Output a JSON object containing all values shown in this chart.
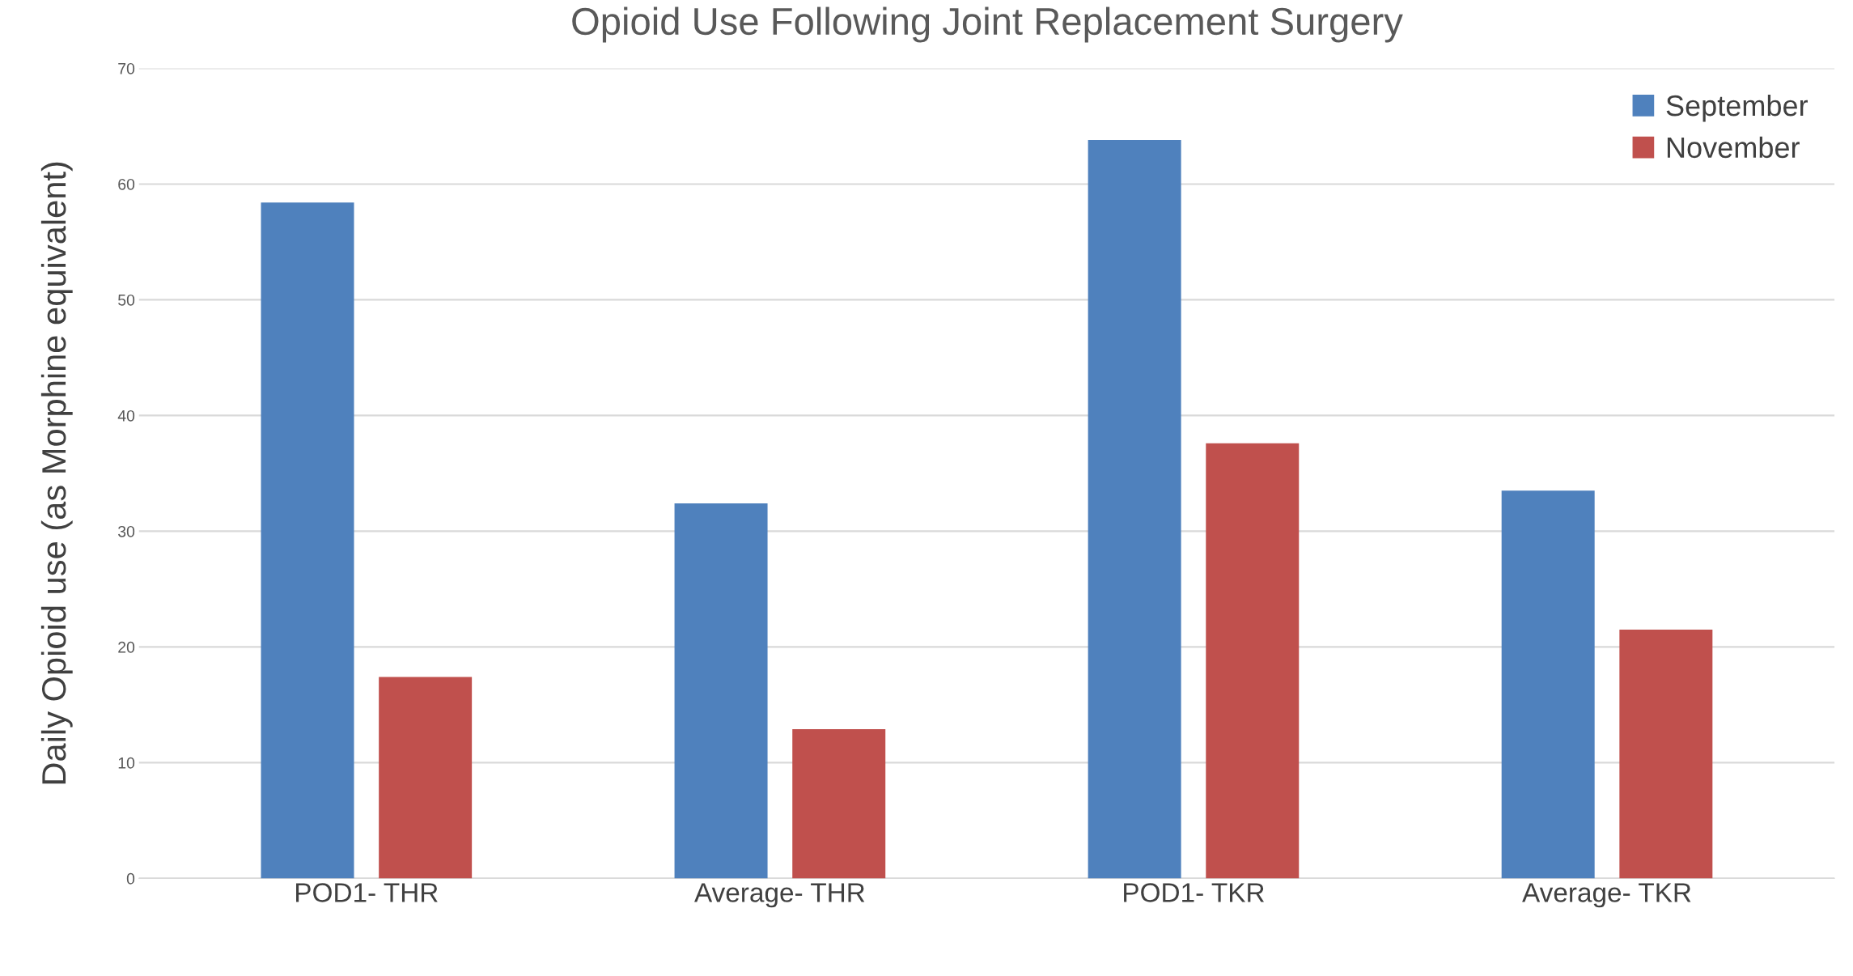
{
  "chart_data": {
    "type": "bar",
    "title": "Opioid Use Following Joint Replacement Surgery",
    "ylabel": "Daily Opioid use (as Morphine equivalent)",
    "categories": [
      "POD1- THR",
      "Average- THR",
      "POD1- TKR",
      "Average- TKR"
    ],
    "series": [
      {
        "name": "September",
        "color": "#4f81bd",
        "values": [
          58.4,
          32.4,
          63.8,
          33.5
        ]
      },
      {
        "name": "November",
        "color": "#c0504d",
        "values": [
          17.4,
          12.9,
          37.6,
          21.5
        ]
      }
    ],
    "ylim": [
      0,
      70
    ],
    "yticks": [
      0,
      10,
      20,
      30,
      40,
      50,
      60,
      70
    ],
    "grid": "y",
    "legend": "top right"
  }
}
